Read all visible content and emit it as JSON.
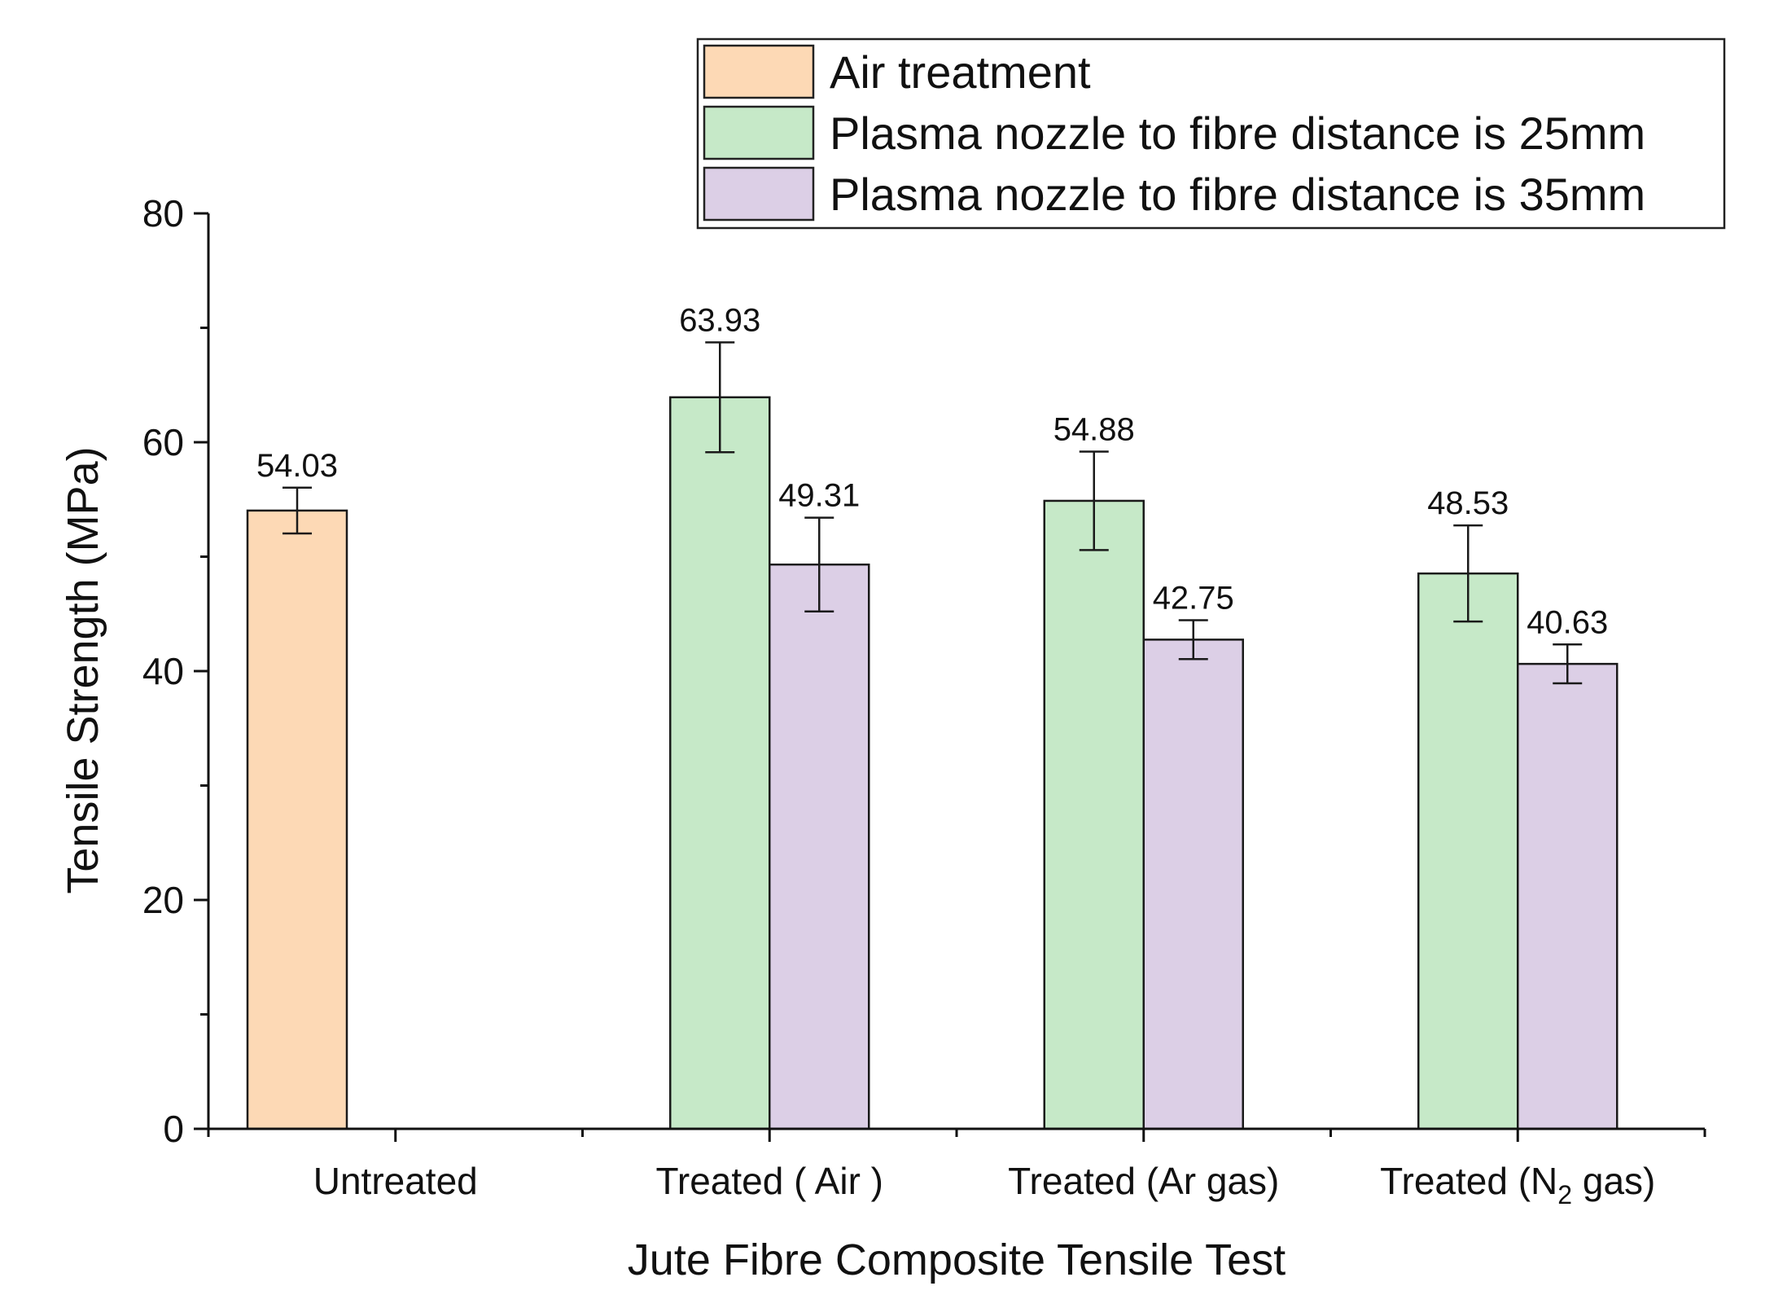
{
  "chart_data": {
    "type": "bar",
    "xlabel": "Jute Fibre Composite Tensile Test",
    "ylabel": "Tensile Strength (MPa)",
    "ylim": [
      0,
      80
    ],
    "yticks": [
      0,
      20,
      40,
      60,
      80
    ],
    "grid": false,
    "legend_position": "top-right",
    "categories": [
      {
        "pre": "Untreated",
        "sub": "",
        "post": ""
      },
      {
        "pre": "Treated ( Air )",
        "sub": "",
        "post": ""
      },
      {
        "pre": "Treated (Ar gas)",
        "sub": "",
        "post": ""
      },
      {
        "pre": "Treated (N",
        "sub": "2",
        "post": " gas)"
      }
    ],
    "series": [
      {
        "name": "Air treatment",
        "color": "#fdd9b5",
        "values": [
          54.03,
          null,
          null,
          null
        ],
        "errors": [
          2.0,
          null,
          null,
          null
        ],
        "labels": [
          "54.03",
          "",
          "",
          ""
        ]
      },
      {
        "name": "Plasma nozzle to fibre distance is 25mm",
        "color": "#c6e9c8",
        "values": [
          null,
          63.93,
          54.88,
          48.53
        ],
        "errors": [
          null,
          4.8,
          4.3,
          4.2
        ],
        "labels": [
          "",
          "63.93",
          "54.88",
          "48.53"
        ]
      },
      {
        "name": "Plasma nozzle to fibre distance is 35mm",
        "color": "#dccfe6",
        "values": [
          null,
          49.31,
          42.75,
          40.63
        ],
        "errors": [
          null,
          4.1,
          1.7,
          1.7
        ],
        "labels": [
          "",
          "49.31",
          "42.75",
          "40.63"
        ]
      }
    ]
  }
}
